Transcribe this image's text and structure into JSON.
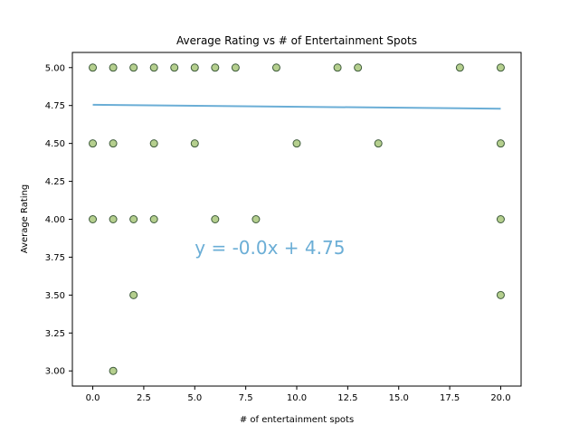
{
  "chart_data": {
    "type": "scatter",
    "title": "Average Rating vs # of Entertainment Spots",
    "xlabel": "# of entertainment spots",
    "ylabel": "Average Rating",
    "xlim": [
      -1,
      21
    ],
    "ylim": [
      2.9,
      5.1
    ],
    "x_ticks": [
      0.0,
      2.5,
      5.0,
      7.5,
      10.0,
      12.5,
      15.0,
      17.5,
      20.0
    ],
    "x_tick_labels": [
      "0.0",
      "2.5",
      "5.0",
      "7.5",
      "10.0",
      "12.5",
      "15.0",
      "17.5",
      "20.0"
    ],
    "y_ticks": [
      3.0,
      3.25,
      3.5,
      3.75,
      4.0,
      4.25,
      4.5,
      4.75,
      5.0
    ],
    "y_tick_labels": [
      "3.00",
      "3.25",
      "3.50",
      "3.75",
      "4.00",
      "4.25",
      "4.50",
      "4.75",
      "5.00"
    ],
    "grid": false,
    "points": [
      {
        "x": 0,
        "y": 5.0
      },
      {
        "x": 1,
        "y": 5.0
      },
      {
        "x": 2,
        "y": 5.0
      },
      {
        "x": 3,
        "y": 5.0
      },
      {
        "x": 4,
        "y": 5.0
      },
      {
        "x": 5,
        "y": 5.0
      },
      {
        "x": 6,
        "y": 5.0
      },
      {
        "x": 7,
        "y": 5.0
      },
      {
        "x": 9,
        "y": 5.0
      },
      {
        "x": 12,
        "y": 5.0
      },
      {
        "x": 13,
        "y": 5.0
      },
      {
        "x": 18,
        "y": 5.0
      },
      {
        "x": 20,
        "y": 5.0
      },
      {
        "x": 0,
        "y": 4.5
      },
      {
        "x": 1,
        "y": 4.5
      },
      {
        "x": 3,
        "y": 4.5
      },
      {
        "x": 5,
        "y": 4.5
      },
      {
        "x": 10,
        "y": 4.5
      },
      {
        "x": 14,
        "y": 4.5
      },
      {
        "x": 20,
        "y": 4.5
      },
      {
        "x": 0,
        "y": 4.0
      },
      {
        "x": 1,
        "y": 4.0
      },
      {
        "x": 2,
        "y": 4.0
      },
      {
        "x": 3,
        "y": 4.0
      },
      {
        "x": 6,
        "y": 4.0
      },
      {
        "x": 8,
        "y": 4.0
      },
      {
        "x": 20,
        "y": 4.0
      },
      {
        "x": 2,
        "y": 3.5
      },
      {
        "x": 20,
        "y": 3.5
      },
      {
        "x": 1,
        "y": 3.0
      }
    ],
    "regression": {
      "slope": -0.0013,
      "intercept": 4.755,
      "x_range": [
        0,
        20
      ]
    },
    "annotation": {
      "text": "y = -0.0x + 4.75",
      "x": 5,
      "y": 3.77
    },
    "colors": {
      "marker_fill": "#b5cf8e",
      "marker_edge": "#3d5a3a",
      "line": "#6baed6"
    }
  }
}
